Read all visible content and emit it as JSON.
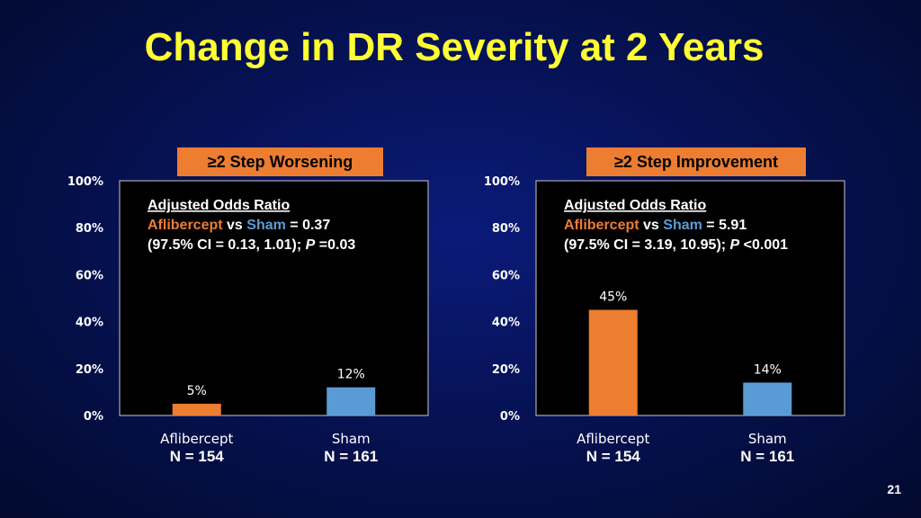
{
  "title": "Change in DR Severity at 2 Years",
  "slide_number": "21",
  "colors": {
    "title": "#ffff33",
    "aflibercept": "#ed7d31",
    "sham": "#5b9bd5",
    "header_box": "#ed7d31",
    "plot_bg": "#000000"
  },
  "panels": [
    {
      "header": "≥2 Step Worsening",
      "stats": {
        "heading": "Adjusted Odds Ratio",
        "drug": "Aflibercept",
        "vs": " vs ",
        "comparator": "Sham",
        "ratio": " = 0.37",
        "ci_text": "(97.5% CI = 0.13, 1.01); ",
        "p_symbol": "P",
        "p_text": " =0.03"
      }
    },
    {
      "header": "≥2 Step Improvement",
      "stats": {
        "heading": "Adjusted Odds Ratio",
        "drug": "Aflibercept",
        "vs": " vs ",
        "comparator": "Sham",
        "ratio": " = 5.91",
        "ci_text": "(97.5% CI = 3.19, 10.95); ",
        "p_symbol": "P",
        "p_text": " <0.001"
      }
    }
  ],
  "chart_data": [
    {
      "type": "bar",
      "title": "≥2 Step Worsening",
      "categories": [
        "Aflibercept",
        "Sham"
      ],
      "n_labels": [
        "N = 154",
        "N = 161"
      ],
      "values": [
        5,
        12
      ],
      "value_labels": [
        "5%",
        "12%"
      ],
      "ylim": [
        0,
        100
      ],
      "yticks": [
        "0%",
        "20%",
        "40%",
        "60%",
        "80%",
        "100%"
      ],
      "grid": false
    },
    {
      "type": "bar",
      "title": "≥2 Step Improvement",
      "categories": [
        "Aflibercept",
        "Sham"
      ],
      "n_labels": [
        "N = 154",
        "N = 161"
      ],
      "values": [
        45,
        14
      ],
      "value_labels": [
        "45%",
        "14%"
      ],
      "ylim": [
        0,
        100
      ],
      "yticks": [
        "0%",
        "20%",
        "40%",
        "60%",
        "80%",
        "100%"
      ],
      "grid": false
    }
  ]
}
